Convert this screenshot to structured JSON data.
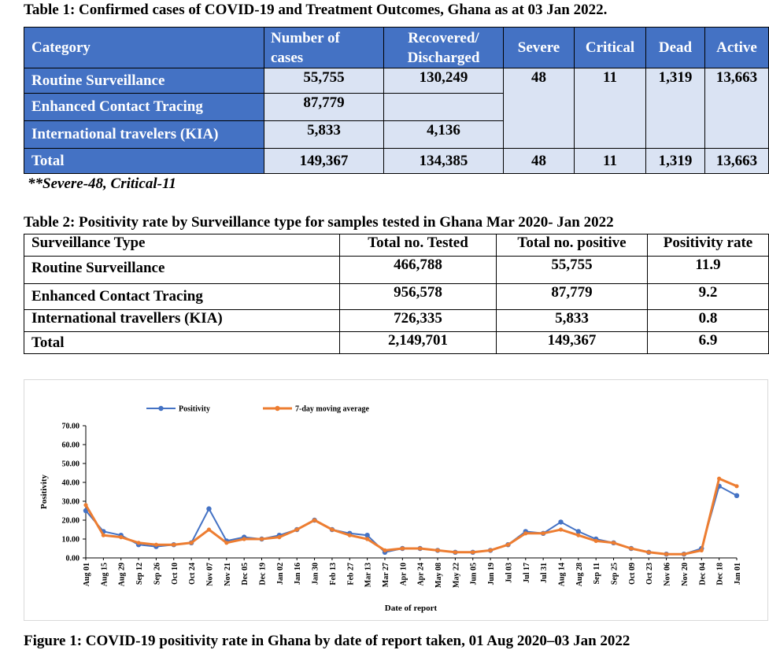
{
  "table1": {
    "caption": "Table 1: Confirmed cases of COVID-19 and Treatment Outcomes, Ghana as at 03 Jan 2022.",
    "headers": {
      "category": "Category",
      "cases_line1": "Number of",
      "cases_line2": "cases",
      "recovered_line1": "Recovered/",
      "recovered_line2": "Discharged",
      "severe": "Severe",
      "critical": "Critical",
      "dead": "Dead",
      "active": "Active"
    },
    "rows": [
      {
        "category": "Routine Surveillance",
        "cases": "55,755",
        "recovered": "130,249",
        "severe": "48",
        "critical": "11",
        "dead": "1,319",
        "active": "13,663"
      },
      {
        "category": "Enhanced Contact Tracing",
        "cases": "87,779",
        "recovered": ""
      },
      {
        "category": "International travelers (KIA)",
        "cases": "5,833",
        "recovered": "4,136"
      }
    ],
    "total": {
      "category": "Total",
      "cases": "149,367",
      "recovered": "134,385",
      "severe": "48",
      "critical": "11",
      "dead": "1,319",
      "active": "13,663"
    },
    "note": "**Severe-48, Critical-11"
  },
  "table2": {
    "caption": "Table 2: Positivity rate by Surveillance type for samples tested in Ghana Mar 2020- Jan 2022",
    "headers": [
      "Surveillance Type",
      "Total no. Tested",
      "Total no. positive",
      "Positivity rate"
    ],
    "rows": [
      [
        "Routine Surveillance",
        "466,788",
        "55,755",
        "11.9"
      ],
      [
        "Enhanced Contact Tracing",
        "956,578",
        "87,779",
        "9.2"
      ],
      [
        "International travellers (KIA)",
        "726,335",
        "5,833",
        "0.8"
      ],
      [
        "Total",
        "2,149,701",
        "149,367",
        "6.9"
      ]
    ]
  },
  "figure_caption": "Figure 1: COVID-19 positivity rate in Ghana by date of report taken, 01 Aug 2020–03 Jan 2022",
  "chart_data": {
    "type": "line",
    "xlabel": "Date of report",
    "ylabel": "Positivity",
    "ylim": [
      0,
      70
    ],
    "yticks": [
      "0.00",
      "10.00",
      "20.00",
      "30.00",
      "40.00",
      "50.00",
      "60.00",
      "70.00"
    ],
    "legend_position": "top",
    "categories": [
      "Aug 01",
      "Aug 15",
      "Aug 29",
      "Sep 12",
      "Sep 26",
      "Oct 10",
      "Oct 24",
      "Nov 07",
      "Nov 21",
      "Dec 05",
      "Dec 19",
      "Jan 02",
      "Jan 16",
      "Jan 30",
      "Feb 13",
      "Feb 27",
      "Mar 13",
      "Mar 27",
      "Apr 10",
      "Apr 24",
      "May 08",
      "May 22",
      "Jun 05",
      "Jun 19",
      "Jul 03",
      "Jul 17",
      "Jul 31",
      "Aug 14",
      "Aug 28",
      "Sep 11",
      "Sep 25",
      "Oct 09",
      "Oct 23",
      "Nov 06",
      "Nov 20",
      "Dec 04",
      "Dec 18",
      "Jan 01"
    ],
    "series": [
      {
        "name": "Positivity",
        "color": "#4472c4",
        "values": [
          25,
          14,
          12,
          7,
          6,
          7,
          8,
          26,
          9,
          11,
          10,
          12,
          15,
          20,
          15,
          13,
          12,
          3,
          5,
          5,
          4,
          3,
          3,
          4,
          7,
          14,
          13,
          19,
          14,
          10,
          8,
          5,
          3,
          2,
          2,
          5,
          38,
          33
        ]
      },
      {
        "name": "7-day moving average",
        "color": "#ed7d31",
        "values": [
          28,
          12,
          11,
          8,
          7,
          7,
          8,
          15,
          8,
          10,
          10,
          11,
          15,
          20,
          15,
          12,
          10,
          4,
          5,
          5,
          4,
          3,
          3,
          4,
          7,
          13,
          13,
          15,
          12,
          9,
          8,
          5,
          3,
          2,
          2,
          4,
          42,
          38
        ]
      }
    ]
  },
  "colors": {
    "header_blue": "#4472c4",
    "cell_light_blue": "#dae3f3",
    "positivity_blue": "#4472c4",
    "moving_avg_orange": "#ed7d31"
  }
}
